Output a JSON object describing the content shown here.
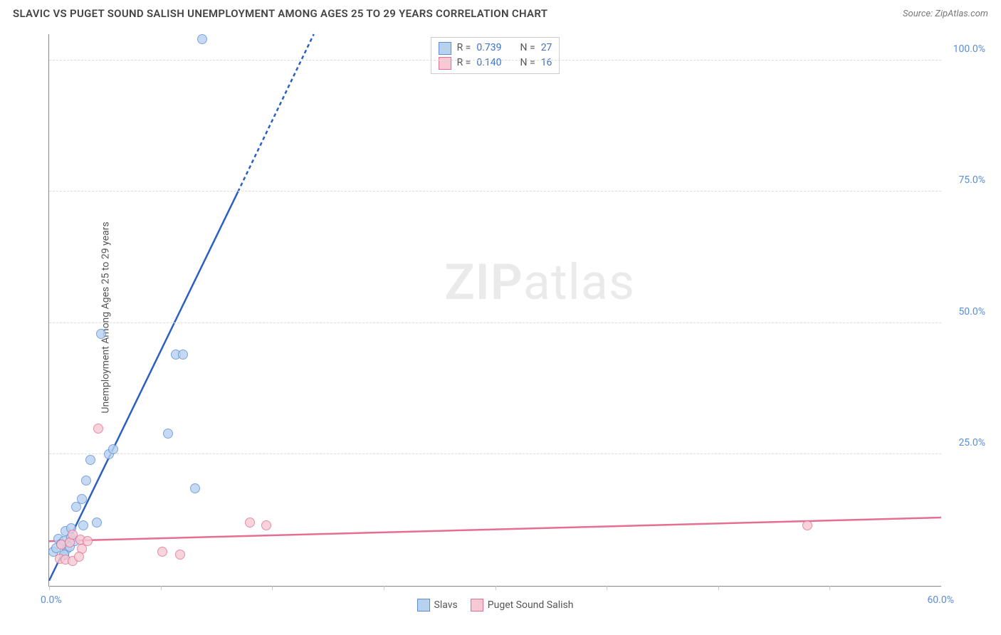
{
  "title": "SLAVIC VS PUGET SOUND SALISH UNEMPLOYMENT AMONG AGES 25 TO 29 YEARS CORRELATION CHART",
  "source_label": "Source: ZipAtlas.com",
  "ylabel": "Unemployment Among Ages 25 to 29 years",
  "watermark_zip": "ZIP",
  "watermark_atlas": "atlas",
  "chart": {
    "type": "scatter_with_trend",
    "xlim": [
      0,
      60
    ],
    "ylim": [
      0,
      105
    ],
    "x_min_label": "0.0%",
    "x_max_label": "60.0%",
    "y_ticks": [
      25,
      50,
      75,
      100
    ],
    "y_tick_labels": [
      "25.0%",
      "50.0%",
      "75.0%",
      "100.0%"
    ],
    "x_ticks": [
      0,
      7.5,
      15,
      22.5,
      30,
      37.5,
      45,
      52.5
    ],
    "grid_color": "#dddddd",
    "axis_color": "#888888",
    "label_color": "#5b8dd6",
    "background_color": "#ffffff",
    "series": [
      {
        "name": "Slavs",
        "marker_fill": "#b7d2ef",
        "marker_stroke": "#5b8dd6",
        "marker_size": 14,
        "marker_opacity": 0.8,
        "trend_color": "#2b5fc1",
        "trend_width": 2.5,
        "trend_dash_extension": true,
        "trend": {
          "x1": 0,
          "y1": 1,
          "x2": 12.7,
          "y2": 75
        },
        "trend_ext": {
          "x1": 12.7,
          "y1": 75,
          "x2": 17.8,
          "y2": 105
        },
        "R": "0.739",
        "N": "27",
        "legend_swatch_fill": "#b7d2ef",
        "legend_swatch_stroke": "#5b8dd6",
        "points": [
          [
            0.3,
            6.5
          ],
          [
            0.5,
            7.2
          ],
          [
            0.6,
            9.0
          ],
          [
            0.8,
            8.0
          ],
          [
            1.0,
            5.8
          ],
          [
            1.0,
            8.5
          ],
          [
            1.1,
            10.5
          ],
          [
            1.2,
            7.0
          ],
          [
            1.4,
            7.5
          ],
          [
            1.5,
            9.2
          ],
          [
            1.5,
            11.0
          ],
          [
            1.7,
            8.6
          ],
          [
            1.8,
            15.0
          ],
          [
            2.2,
            16.5
          ],
          [
            2.3,
            11.5
          ],
          [
            2.5,
            20.0
          ],
          [
            2.8,
            24.0
          ],
          [
            3.2,
            12.0
          ],
          [
            3.5,
            48.0
          ],
          [
            4.0,
            25.0
          ],
          [
            4.3,
            26.0
          ],
          [
            8.0,
            29.0
          ],
          [
            8.5,
            44.0
          ],
          [
            9.0,
            44.0
          ],
          [
            9.8,
            18.5
          ],
          [
            10.3,
            104.0
          ],
          [
            1.0,
            6.0
          ]
        ]
      },
      {
        "name": "Puget Sound Salish",
        "marker_fill": "#f6c9d4",
        "marker_stroke": "#e46f91",
        "marker_size": 14,
        "marker_opacity": 0.8,
        "trend_color": "#e46f91",
        "trend_width": 2.5,
        "trend_dash_extension": false,
        "trend": {
          "x1": 0,
          "y1": 8.5,
          "x2": 60,
          "y2": 13.0
        },
        "R": "0.140",
        "N": "16",
        "legend_swatch_fill": "#f6c9d4",
        "legend_swatch_stroke": "#e46f91",
        "points": [
          [
            0.7,
            5.2
          ],
          [
            0.8,
            7.8
          ],
          [
            1.1,
            5.0
          ],
          [
            1.4,
            8.2
          ],
          [
            1.6,
            4.8
          ],
          [
            1.6,
            9.8
          ],
          [
            2.1,
            8.8
          ],
          [
            2.2,
            7.0
          ],
          [
            2.6,
            8.5
          ],
          [
            3.3,
            30.0
          ],
          [
            7.6,
            6.5
          ],
          [
            8.8,
            6.0
          ],
          [
            13.5,
            12.0
          ],
          [
            14.6,
            11.5
          ],
          [
            51.0,
            11.5
          ],
          [
            2.0,
            5.5
          ]
        ]
      }
    ],
    "stats_box": {
      "R_prefix": "R = ",
      "N_prefix": "N = "
    },
    "bottom_legend": true
  }
}
